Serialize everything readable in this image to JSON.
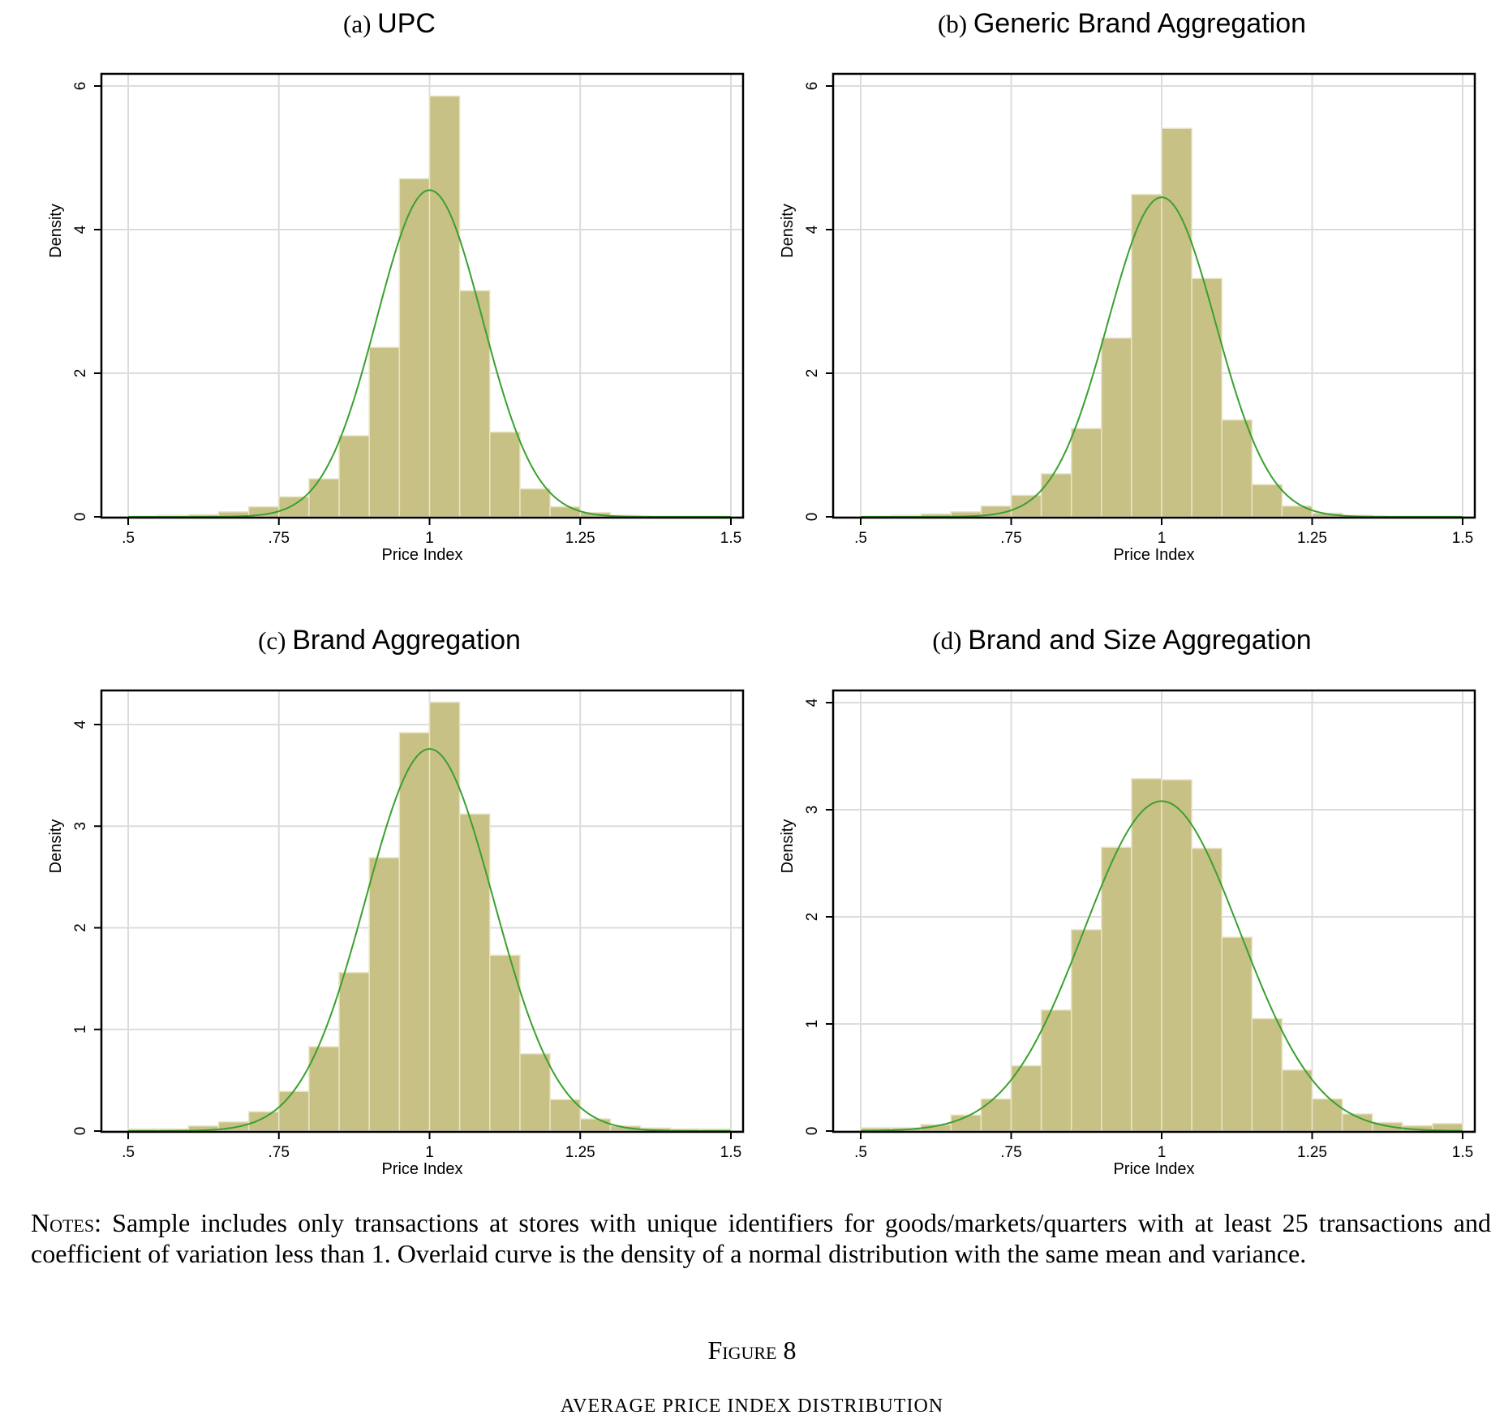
{
  "chart_data": [
    {
      "type": "bar",
      "panel_label": "(a)",
      "title": "UPC",
      "xlabel": "Price Index",
      "ylabel": "Density",
      "xlim": [
        0.5,
        1.5
      ],
      "ylim": [
        0,
        6
      ],
      "xticks": [
        ".5",
        ".75",
        "1",
        "1.25",
        "1.5"
      ],
      "yticks": [
        "0",
        "2",
        "4",
        "6"
      ],
      "bin_width": 0.05,
      "bin_starts": [
        0.5,
        0.55,
        0.6,
        0.65,
        0.7,
        0.75,
        0.8,
        0.85,
        0.9,
        0.95,
        1.0,
        1.05,
        1.1,
        1.15,
        1.2,
        1.25,
        1.3,
        1.35,
        1.4,
        1.45
      ],
      "values": [
        0.01,
        0.02,
        0.03,
        0.07,
        0.14,
        0.28,
        0.53,
        1.13,
        2.36,
        4.71,
        5.86,
        3.15,
        1.18,
        0.39,
        0.14,
        0.06,
        0.02,
        0.01,
        0.01,
        0.01
      ],
      "normal_curve": {
        "mean": 1.0,
        "peak_density": 4.55
      },
      "grid": true,
      "bar_color": "#c8c186",
      "curve_color": "#3aa02e"
    },
    {
      "type": "bar",
      "panel_label": "(b)",
      "title": "Generic Brand Aggregation",
      "xlabel": "Price Index",
      "ylabel": "Density",
      "xlim": [
        0.5,
        1.5
      ],
      "ylim": [
        0,
        6
      ],
      "xticks": [
        ".5",
        ".75",
        "1",
        "1.25",
        "1.5"
      ],
      "yticks": [
        "0",
        "2",
        "4",
        "6"
      ],
      "bin_width": 0.05,
      "bin_starts": [
        0.5,
        0.55,
        0.6,
        0.65,
        0.7,
        0.75,
        0.8,
        0.85,
        0.9,
        0.95,
        1.0,
        1.05,
        1.1,
        1.15,
        1.2,
        1.25,
        1.3,
        1.35,
        1.4,
        1.45
      ],
      "values": [
        0.01,
        0.02,
        0.04,
        0.07,
        0.15,
        0.3,
        0.6,
        1.23,
        2.49,
        4.49,
        5.41,
        3.32,
        1.35,
        0.45,
        0.15,
        0.05,
        0.02,
        0.01,
        0.01,
        0.01
      ],
      "normal_curve": {
        "mean": 1.0,
        "peak_density": 4.45
      },
      "grid": true,
      "bar_color": "#c8c186",
      "curve_color": "#3aa02e"
    },
    {
      "type": "bar",
      "panel_label": "(c)",
      "title": "Brand Aggregation",
      "xlabel": "Price Index",
      "ylabel": "Density",
      "xlim": [
        0.5,
        1.5
      ],
      "ylim": [
        0,
        4.35
      ],
      "xticks": [
        ".5",
        ".75",
        "1",
        "1.25",
        "1.5"
      ],
      "yticks": [
        "0",
        "1",
        "2",
        "3",
        "4"
      ],
      "bin_width": 0.05,
      "bin_starts": [
        0.5,
        0.55,
        0.6,
        0.65,
        0.7,
        0.75,
        0.8,
        0.85,
        0.9,
        0.95,
        1.0,
        1.05,
        1.1,
        1.15,
        1.2,
        1.25,
        1.3,
        1.35,
        1.4,
        1.45
      ],
      "values": [
        0.02,
        0.02,
        0.05,
        0.09,
        0.19,
        0.39,
        0.83,
        1.56,
        2.69,
        3.92,
        4.22,
        3.12,
        1.73,
        0.76,
        0.31,
        0.12,
        0.05,
        0.03,
        0.02,
        0.02
      ],
      "normal_curve": {
        "mean": 1.0,
        "peak_density": 3.76
      },
      "grid": true,
      "bar_color": "#c8c186",
      "curve_color": "#3aa02e"
    },
    {
      "type": "bar",
      "panel_label": "(d)",
      "title": "Brand and Size Aggregation",
      "xlabel": "Price Index",
      "ylabel": "Density",
      "xlim": [
        0.5,
        1.5
      ],
      "ylim": [
        0,
        4.1
      ],
      "xticks": [
        ".5",
        ".75",
        "1",
        "1.25",
        "1.5"
      ],
      "yticks": [
        "0",
        "1",
        "2",
        "3",
        "4"
      ],
      "bin_width": 0.05,
      "bin_starts": [
        0.5,
        0.55,
        0.6,
        0.65,
        0.7,
        0.75,
        0.8,
        0.85,
        0.9,
        0.95,
        1.0,
        1.05,
        1.1,
        1.15,
        1.2,
        1.25,
        1.3,
        1.35,
        1.4,
        1.45
      ],
      "values": [
        0.03,
        0.03,
        0.06,
        0.15,
        0.3,
        0.61,
        1.13,
        1.88,
        2.65,
        3.29,
        3.28,
        2.64,
        1.81,
        1.05,
        0.57,
        0.3,
        0.16,
        0.08,
        0.05,
        0.07
      ],
      "normal_curve": {
        "mean": 1.0,
        "peak_density": 3.08
      },
      "grid": true,
      "bar_color": "#c8c186",
      "curve_color": "#3aa02e"
    }
  ],
  "notes": {
    "label": "Notes:",
    "text": "Sample includes only transactions at stores with unique identifiers for goods/markets/quarters with at least 25 transactions and coefficient of variation less than 1. Overlaid curve is the density of a normal distribution with the same mean and variance."
  },
  "figure_number": "Figure 8",
  "figure_caption": "AVERAGE PRICE INDEX DISTRIBUTION"
}
